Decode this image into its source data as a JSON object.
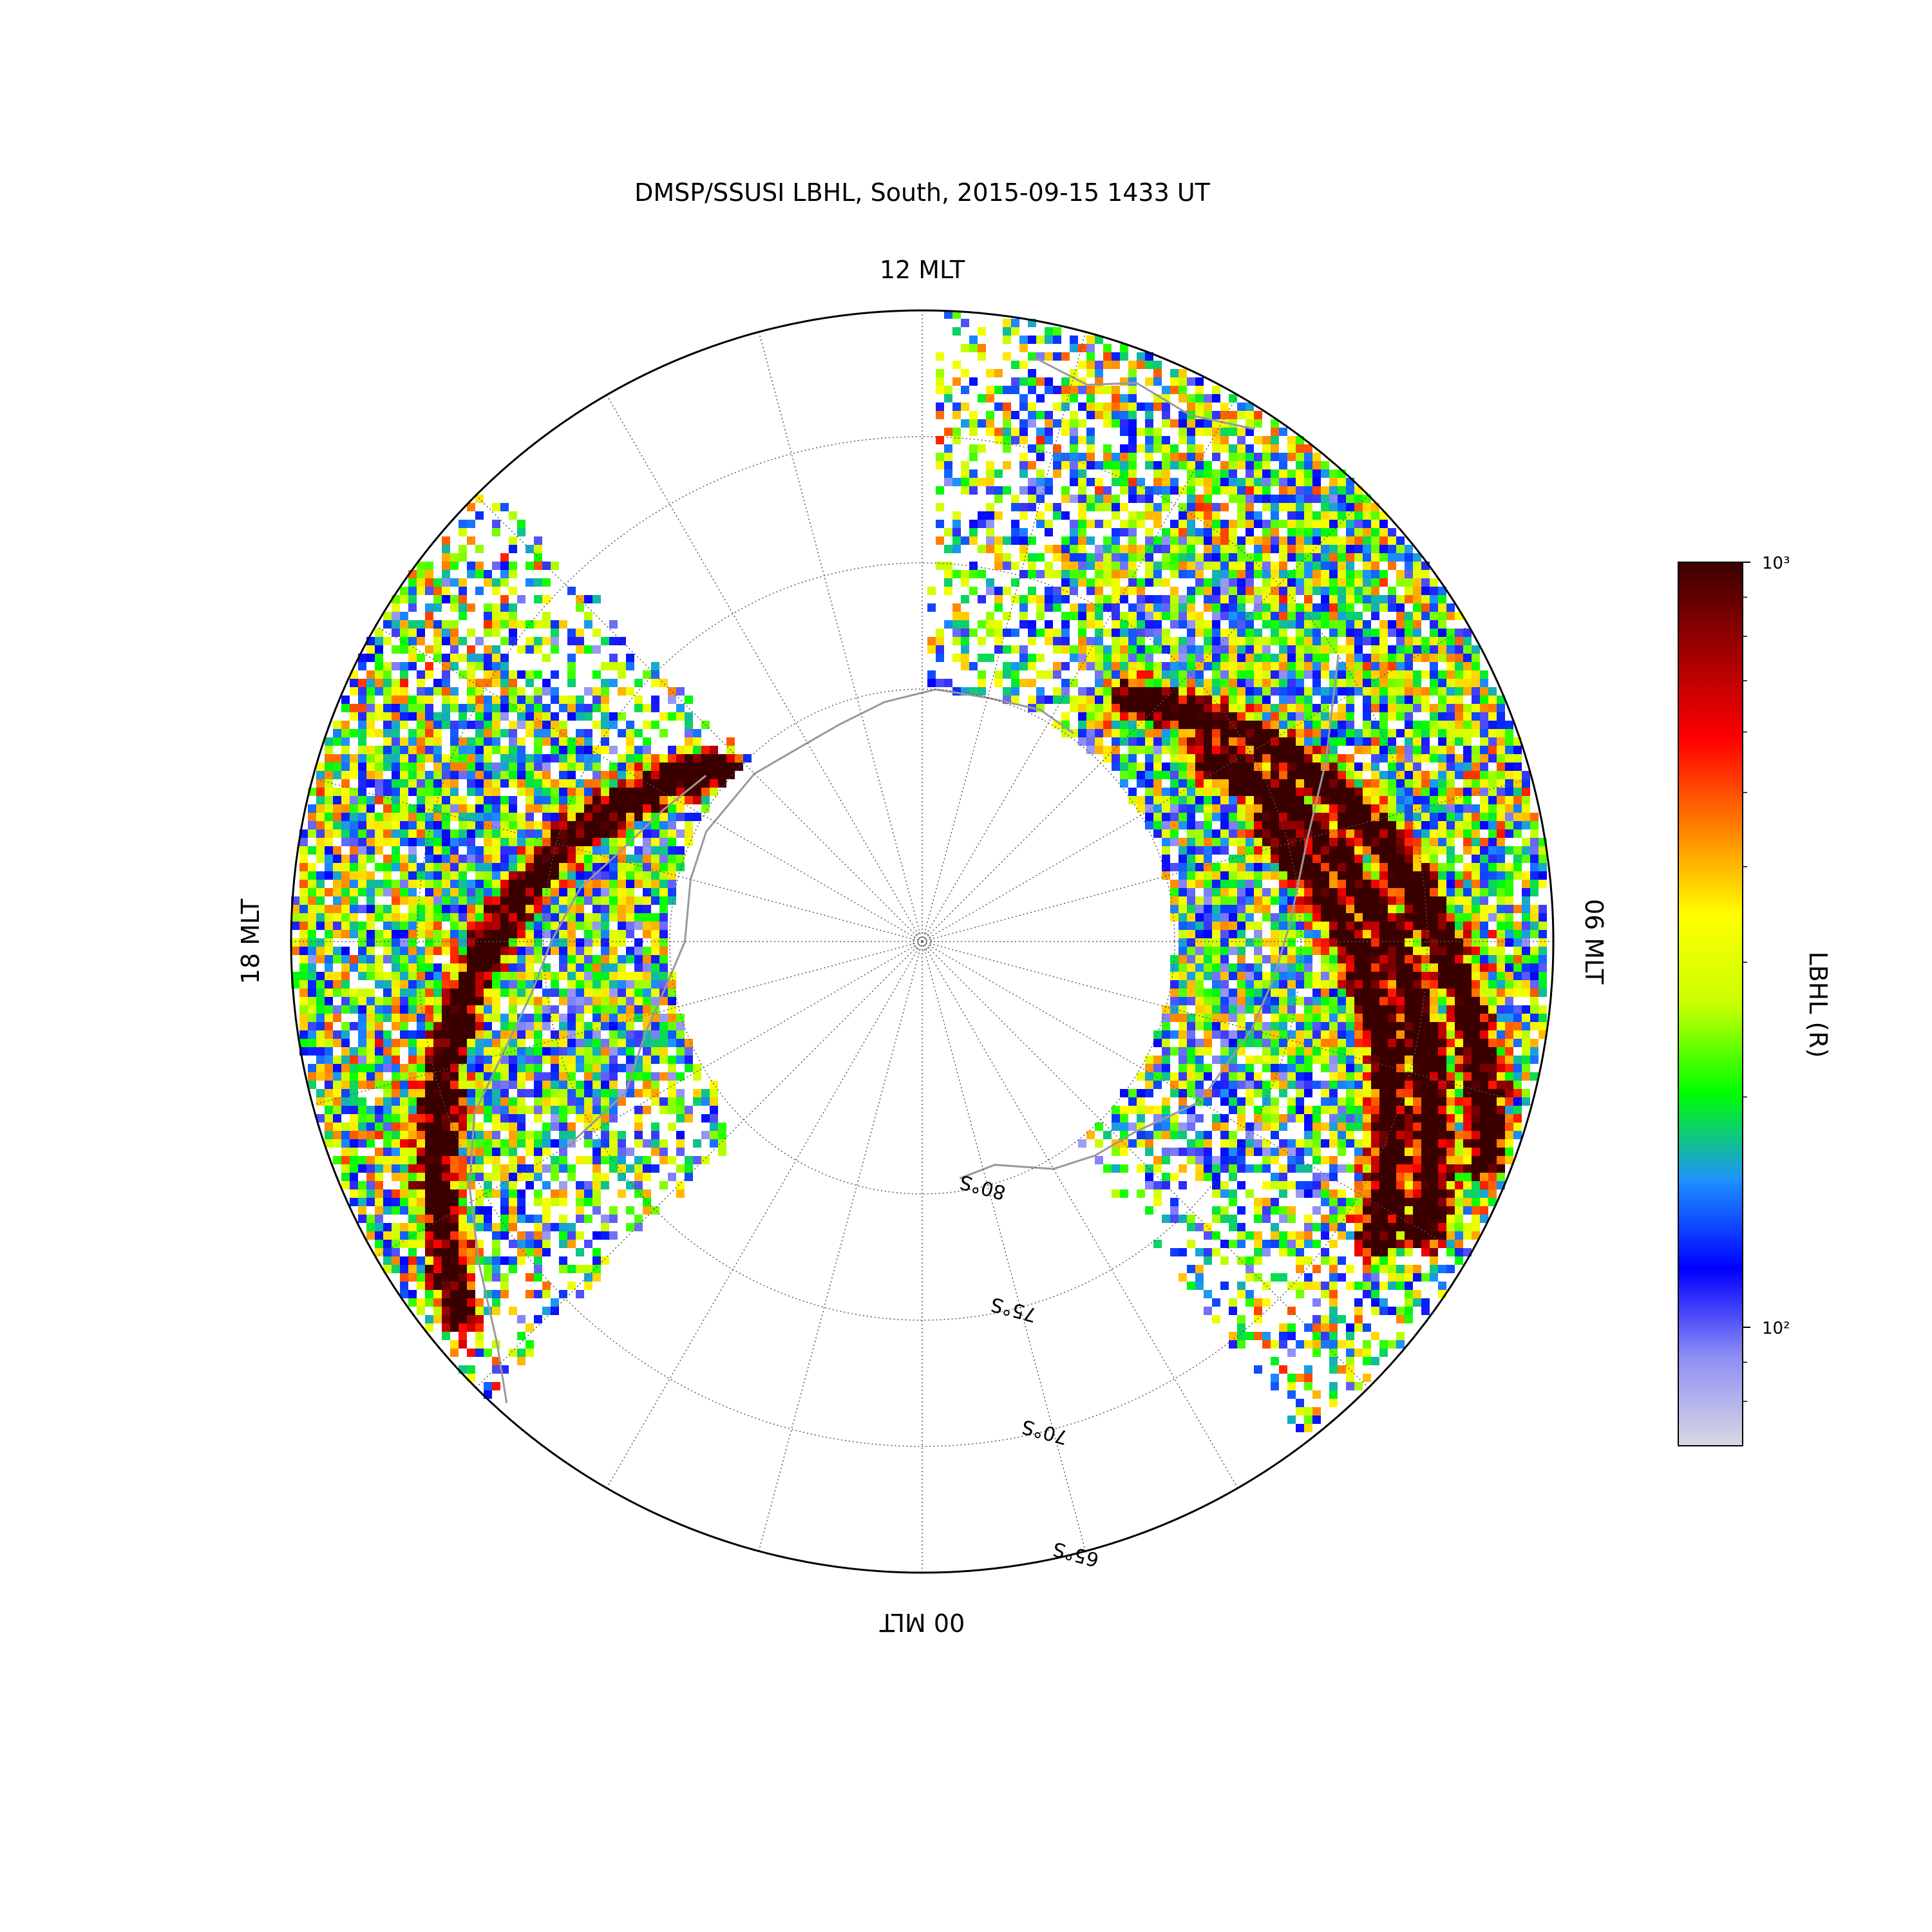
{
  "chart_data": {
    "type": "heatmap",
    "projection": "polar (magnetic local time vs magnetic latitude), Southern hemisphere, noon at top",
    "title": "DMSP/SSUSI LBHL, South, 2015-09-15 1433 UT",
    "mlt_labels": {
      "top": "12 MLT",
      "right": "06 MLT",
      "bottom": "00 MLT",
      "left": "18 MLT"
    },
    "latitude_rings": [
      {
        "lat": 65,
        "label": "65°S"
      },
      {
        "lat": 70,
        "label": "70°S"
      },
      {
        "lat": 75,
        "label": "75°S"
      },
      {
        "lat": 80,
        "label": "80°S"
      }
    ],
    "lat_range": [
      -90,
      -65
    ],
    "meridian_spacing_hours": 1,
    "colorbar": {
      "label": "LBHL (R)",
      "scale": "log",
      "range": [
        70,
        1000
      ],
      "ticks": [
        {
          "value": 100,
          "label": "10²"
        },
        {
          "value": 1000,
          "label": "10³"
        }
      ],
      "colors": [
        "#d8d8e4",
        "#8f8ff5",
        "#0000ff",
        "#1e90ff",
        "#00ff00",
        "#c8ff00",
        "#ffff00",
        "#ff8000",
        "#ff0000",
        "#a00000",
        "#3a0000"
      ]
    },
    "swaths": [
      {
        "name": "dusk swath",
        "mlt_range": [
          14.9,
          21.1
        ],
        "lat_range": [
          -80,
          -64.8
        ],
        "auroral_arc": {
          "mlt_start": 15.3,
          "mlt_end": 20.6,
          "lat_start": -79.5,
          "lat_end": -66.5,
          "peak_R": 1000
        }
      },
      {
        "name": "dawn swath",
        "mlt_range": [
          2.5,
          11.9
        ],
        "lat_range": [
          -80,
          -64.8
        ],
        "auroral_arcs": [
          {
            "mlt_start": 9.3,
            "mlt_end": 4.6,
            "lat_start": -77.5,
            "lat_end": -66.0,
            "peak_R": 1000
          },
          {
            "mlt_start": 8.2,
            "mlt_end": 4.0,
            "lat_start": -76.5,
            "lat_end": -67.0,
            "peak_R": 1000
          },
          {
            "mlt_start": 7.2,
            "mlt_end": 3.8,
            "lat_start": -75.5,
            "lat_end": -68.5,
            "peak_R": 1000
          }
        ]
      }
    ],
    "coastline_color": "#999999",
    "grid": true
  }
}
